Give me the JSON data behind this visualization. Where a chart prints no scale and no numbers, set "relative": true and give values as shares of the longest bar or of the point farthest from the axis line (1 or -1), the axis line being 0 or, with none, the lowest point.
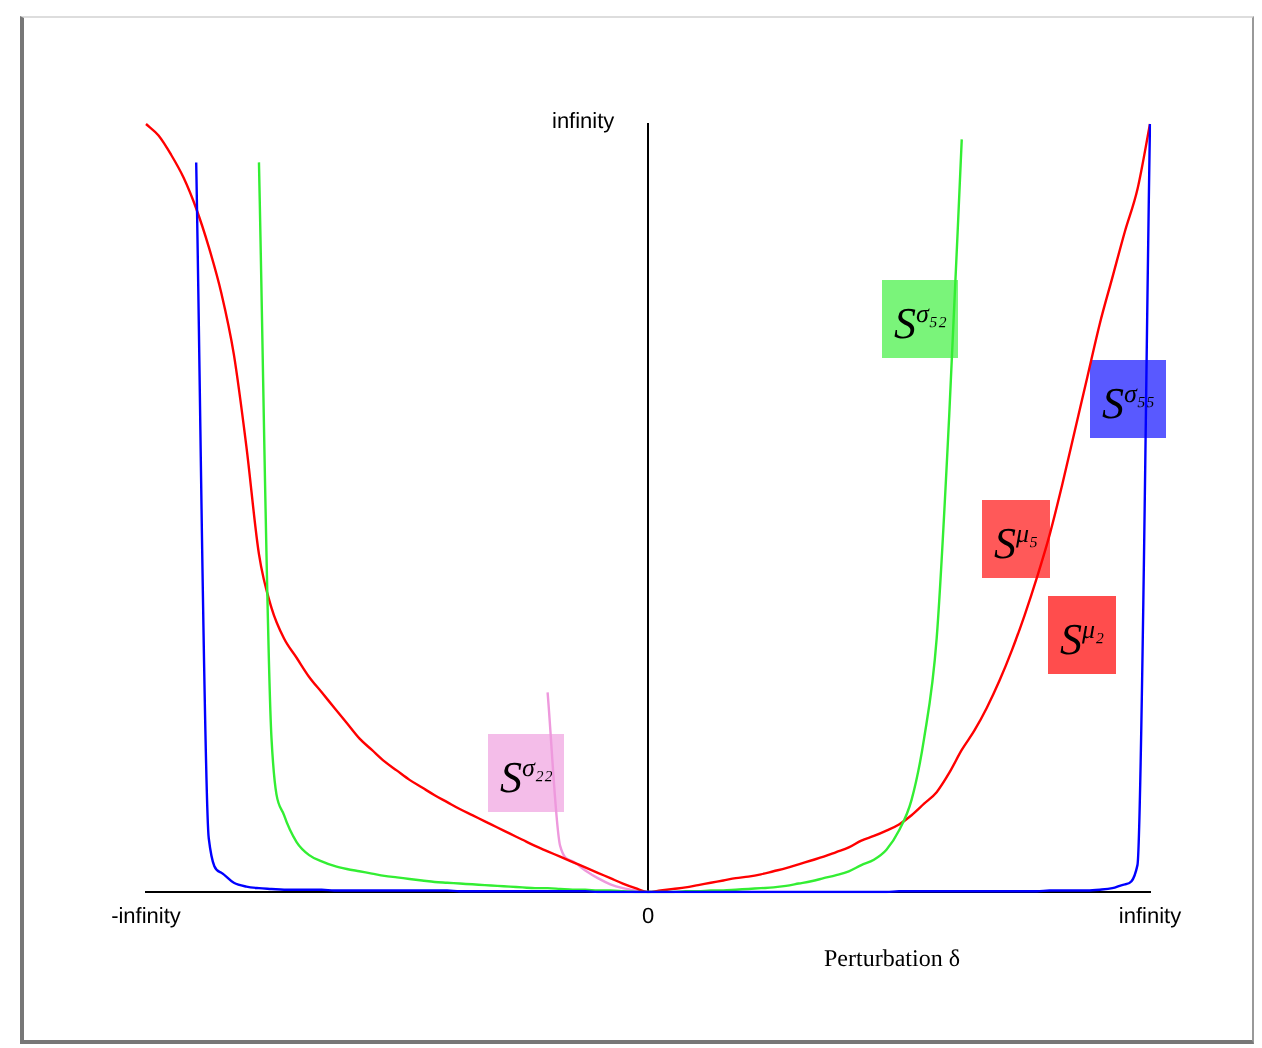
{
  "chart_data": {
    "type": "line",
    "xlabel": "Perturbation δ",
    "relative": true,
    "categories": [
      "-infinity",
      null,
      null,
      null,
      null,
      null,
      null,
      null,
      null,
      null,
      null,
      null,
      null,
      null,
      null,
      null,
      null,
      null,
      null,
      null,
      null,
      null,
      null,
      null,
      null,
      null,
      null,
      null,
      null,
      null,
      null,
      null,
      null,
      null,
      null,
      null,
      null,
      null,
      null,
      null,
      "0",
      null,
      null,
      null,
      null,
      null,
      null,
      null,
      null,
      null,
      null,
      null,
      null,
      null,
      null,
      null,
      null,
      null,
      null,
      null,
      null,
      null,
      null,
      null,
      null,
      null,
      null,
      null,
      null,
      null,
      null,
      null,
      null,
      null,
      null,
      null,
      null,
      null,
      null,
      null,
      "infinity"
    ],
    "grid": false,
    "legend": false,
    "marker": "none",
    "line_style": "solid",
    "series": [
      {
        "name": "S$^{σ₅₅}$",
        "color": "#0000ff",
        "values": [
          null,
          null,
          null,
          null,
          0.95,
          0.07,
          0.025,
          0.012,
          0.007,
          0.005,
          0.004,
          0.003,
          0.003,
          0.003,
          0.003,
          0.002,
          0.002,
          0.002,
          0.002,
          0.002,
          0.002,
          0.002,
          0.002,
          0.002,
          0.002,
          0.001,
          0.001,
          0.001,
          0.001,
          0.001,
          0.001,
          0.001,
          0.001,
          0.001,
          0.001,
          0.001,
          0,
          0,
          0,
          0,
          0,
          0,
          0,
          0,
          0,
          0,
          0,
          0,
          0,
          0,
          0,
          0,
          0,
          0,
          0,
          0,
          0,
          0,
          0,
          0,
          0.001,
          0.001,
          0.001,
          0.001,
          0.001,
          0.001,
          0.001,
          0.001,
          0.001,
          0.001,
          0.001,
          0.001,
          0.002,
          0.002,
          0.002,
          0.002,
          0.003,
          0.005,
          0.01,
          0.035,
          1
        ]
      },
      {
        "name": "S$^{σ₅₂}$",
        "color": "#33ee33",
        "values": [
          null,
          null,
          null,
          null,
          null,
          null,
          null,
          null,
          null,
          0.95,
          0.2,
          0.1,
          0.065,
          0.048,
          0.04,
          0.034,
          0.03,
          0.027,
          0.024,
          0.021,
          0.019,
          0.017,
          0.015,
          0.013,
          0.012,
          0.011,
          0.01,
          0.009,
          0.008,
          0.007,
          0.006,
          0.005,
          0.005,
          0.004,
          0.003,
          0.003,
          0.002,
          0.002,
          0.001,
          0,
          0,
          0,
          0,
          0.001,
          0.001,
          0.002,
          0.002,
          0.003,
          0.004,
          0.005,
          0.006,
          0.008,
          0.011,
          0.014,
          0.018,
          0.022,
          0.027,
          0.035,
          0.042,
          0.055,
          0.08,
          0.12,
          0.2,
          0.33,
          0.62,
          0.98,
          null,
          null,
          null,
          null,
          null,
          null,
          null,
          null,
          null,
          null,
          null,
          null,
          null,
          null,
          null
        ]
      },
      {
        "name": "S$^{μ₅}$",
        "color": "#ff0000",
        "values": [
          1,
          0.985,
          0.96,
          0.93,
          0.89,
          0.84,
          0.78,
          0.7,
          0.58,
          0.44,
          0.37,
          0.33,
          0.305,
          0.28,
          0.26,
          0.24,
          0.22,
          0.2,
          0.185,
          0.17,
          0.158,
          0.146,
          0.136,
          0.126,
          0.117,
          0.108,
          0.1,
          0.092,
          0.084,
          0.076,
          0.068,
          0.06,
          0.053,
          0.046,
          0.039,
          0.032,
          0.025,
          0.018,
          0.011,
          0.005,
          0,
          0.002,
          0.004,
          0.006,
          0.009,
          0.012,
          0.015,
          0.018,
          0.02,
          0.023,
          0.027,
          0.031,
          0.036,
          0.041,
          0.046,
          0.052,
          0.058,
          0.067,
          0.073,
          0.08,
          0.088,
          0.1,
          0.115,
          0.13,
          0.155,
          0.185,
          0.21,
          0.24,
          0.275,
          0.315,
          0.36,
          0.41,
          0.465,
          0.53,
          0.6,
          0.67,
          0.74,
          0.8,
          0.86,
          0.915,
          1
        ]
      },
      {
        "name": "S$^{σ₂₂}$",
        "color": "#ee99dd",
        "values": [
          null,
          null,
          null,
          null,
          null,
          null,
          null,
          null,
          null,
          null,
          null,
          null,
          null,
          null,
          null,
          null,
          null,
          null,
          null,
          null,
          null,
          null,
          null,
          null,
          null,
          null,
          null,
          null,
          null,
          null,
          null,
          null,
          0.26,
          0.06,
          0.04,
          0.028,
          0.018,
          0.01,
          0.005,
          0.002,
          0,
          null,
          null,
          null,
          null,
          null,
          null,
          null,
          null,
          null,
          null,
          null,
          null,
          null,
          null,
          null,
          null,
          null,
          null,
          null,
          null,
          null,
          null,
          null,
          null,
          null,
          null,
          null,
          null,
          null,
          null,
          null,
          null,
          null,
          null,
          null,
          null,
          null,
          null,
          null,
          null
        ]
      }
    ],
    "annotations": [
      "infinity",
      "S$^{μ₂}$"
    ]
  }
}
